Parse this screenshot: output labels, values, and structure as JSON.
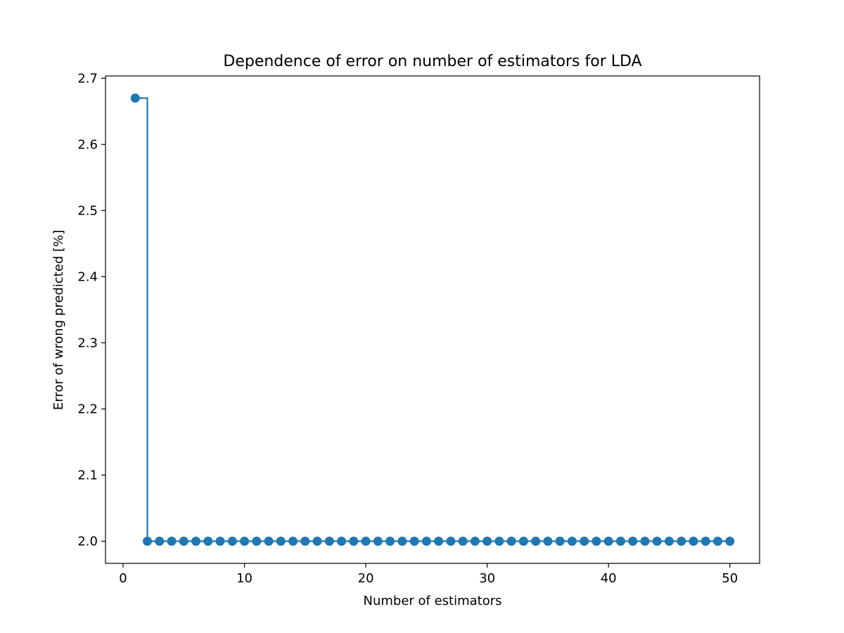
{
  "chart_data": {
    "type": "line",
    "title": "Dependence of error on number of estimators for LDA",
    "xlabel": "Number of estimators",
    "ylabel": "Error of wrong predicted [%]",
    "xlim": [
      -1.45,
      52.45
    ],
    "ylim": [
      1.9665,
      2.7035
    ],
    "xticks": [
      0,
      10,
      20,
      30,
      40,
      50
    ],
    "yticks": [
      2.0,
      2.1,
      2.2,
      2.3,
      2.4,
      2.5,
      2.6,
      2.7
    ],
    "grid": false,
    "line_style": "steps-post",
    "series": [
      {
        "color": "#1f77b4",
        "marker": "circle",
        "x": [
          1,
          2,
          3,
          4,
          5,
          6,
          7,
          8,
          9,
          10,
          11,
          12,
          13,
          14,
          15,
          16,
          17,
          18,
          19,
          20,
          21,
          22,
          23,
          24,
          25,
          26,
          27,
          28,
          29,
          30,
          31,
          32,
          33,
          34,
          35,
          36,
          37,
          38,
          39,
          40,
          41,
          42,
          43,
          44,
          45,
          46,
          47,
          48,
          49,
          50
        ],
        "y": [
          2.67,
          2.0,
          2.0,
          2.0,
          2.0,
          2.0,
          2.0,
          2.0,
          2.0,
          2.0,
          2.0,
          2.0,
          2.0,
          2.0,
          2.0,
          2.0,
          2.0,
          2.0,
          2.0,
          2.0,
          2.0,
          2.0,
          2.0,
          2.0,
          2.0,
          2.0,
          2.0,
          2.0,
          2.0,
          2.0,
          2.0,
          2.0,
          2.0,
          2.0,
          2.0,
          2.0,
          2.0,
          2.0,
          2.0,
          2.0,
          2.0,
          2.0,
          2.0,
          2.0,
          2.0,
          2.0,
          2.0,
          2.0,
          2.0,
          2.0
        ]
      }
    ]
  }
}
